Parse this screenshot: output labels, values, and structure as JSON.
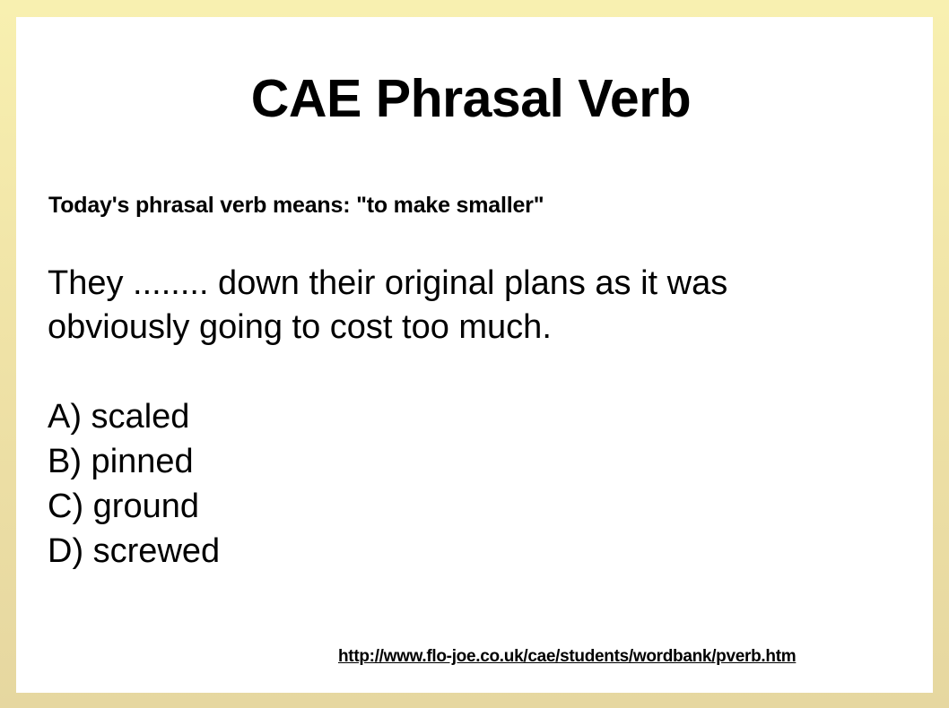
{
  "slide": {
    "title": "CAE Phrasal Verb",
    "subtitle": "Today's phrasal verb means: \"to make smaller\"",
    "sentence_line1": "They ........ down their original plans as it was",
    "sentence_line2": "obviously going to cost too much.",
    "options": [
      "A) scaled",
      "B) pinned",
      "C) ground",
      "D) screwed"
    ],
    "source_url": "http://www.flo-joe.co.uk/cae/students/wordbank/pverb.htm"
  }
}
